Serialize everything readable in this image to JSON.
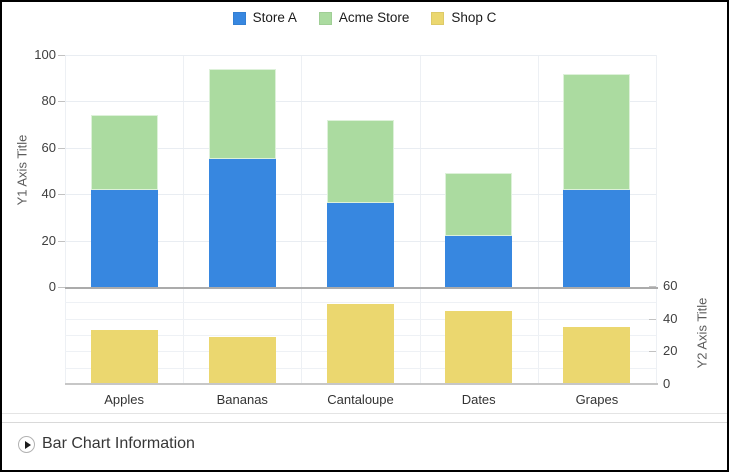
{
  "window": {
    "background": "#ffffff",
    "border_color": "#000000"
  },
  "legend": {
    "position": "top",
    "items": [
      {
        "label": "Store A",
        "color": "#3787e0"
      },
      {
        "label": "Acme Store",
        "color": "#abdba0"
      },
      {
        "label": "Shop C",
        "color": "#ebd76f"
      }
    ]
  },
  "chart_data": {
    "type": "bar",
    "stacked": true,
    "title": "",
    "categories": [
      "Apples",
      "Bananas",
      "Cantaloupe",
      "Dates",
      "Grapes"
    ],
    "series": [
      {
        "name": "Store A",
        "axis": "y1",
        "color": "#3787e0",
        "values": [
          42,
          55,
          36,
          22,
          42
        ]
      },
      {
        "name": "Acme Store",
        "axis": "y1",
        "color": "#abdba0",
        "stacked_on": "Store A",
        "values": [
          32,
          39,
          36,
          27,
          50
        ]
      },
      {
        "name": "Shop C",
        "axis": "y2",
        "color": "#ebd76f",
        "values": [
          33,
          29,
          49,
          45,
          35
        ]
      }
    ],
    "totals_y1": [
      74,
      94,
      72,
      49,
      92
    ],
    "y1": {
      "title": "Y1 Axis Title",
      "min": 0,
      "max": 100,
      "tick_step": 20,
      "ticks": [
        0,
        20,
        40,
        60,
        80,
        100
      ]
    },
    "y2": {
      "title": "Y2 Axis Title",
      "min": 0,
      "max": 60,
      "tick_step": 20,
      "grid_step": 10,
      "ticks": [
        0,
        20,
        40,
        60
      ]
    },
    "grid": true,
    "legend_position": "top"
  },
  "info_bar": {
    "label": "Bar Chart Information",
    "expander_state": "collapsed",
    "expander_icon": "play-triangle-icon"
  }
}
